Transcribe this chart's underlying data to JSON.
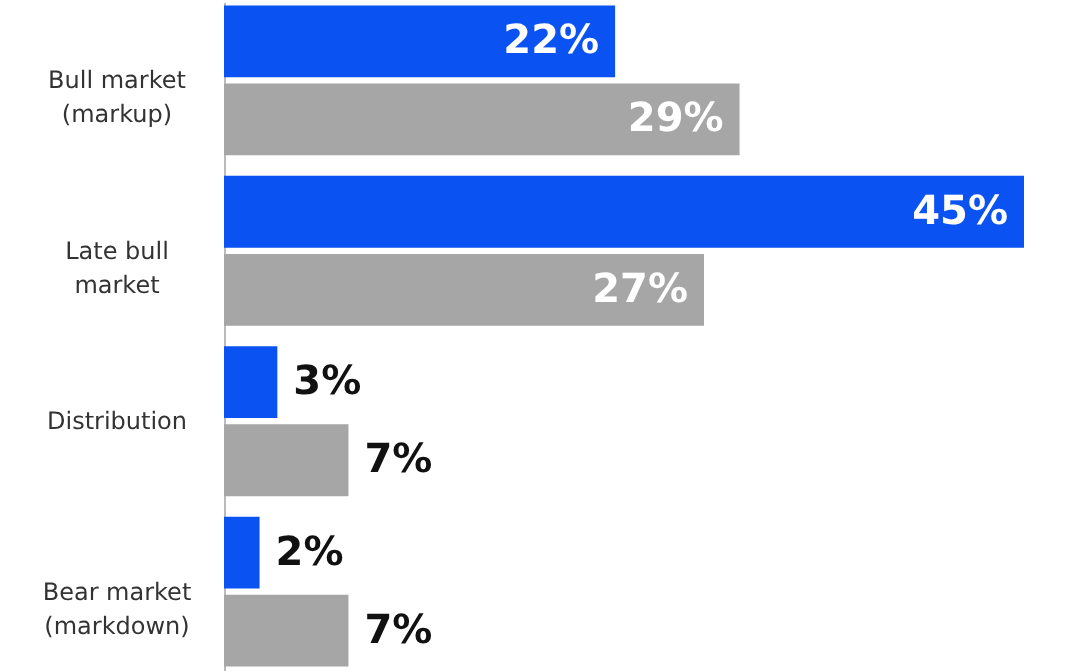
{
  "chart_data": {
    "type": "bar",
    "orientation": "horizontal",
    "categories": [
      "Bull market (markup)",
      "Late bull market",
      "Distribution",
      "Bear market (markdown)"
    ],
    "series": [
      {
        "color": "#0b52f2",
        "values": [
          22,
          45,
          3,
          2
        ],
        "value_labels": [
          "22%",
          "45%",
          "3%",
          "2%"
        ]
      },
      {
        "color": "#a6a6a6",
        "values": [
          29,
          27,
          7,
          7
        ],
        "value_labels": [
          "29%",
          "27%",
          "7%",
          "7%"
        ]
      }
    ]
  }
}
